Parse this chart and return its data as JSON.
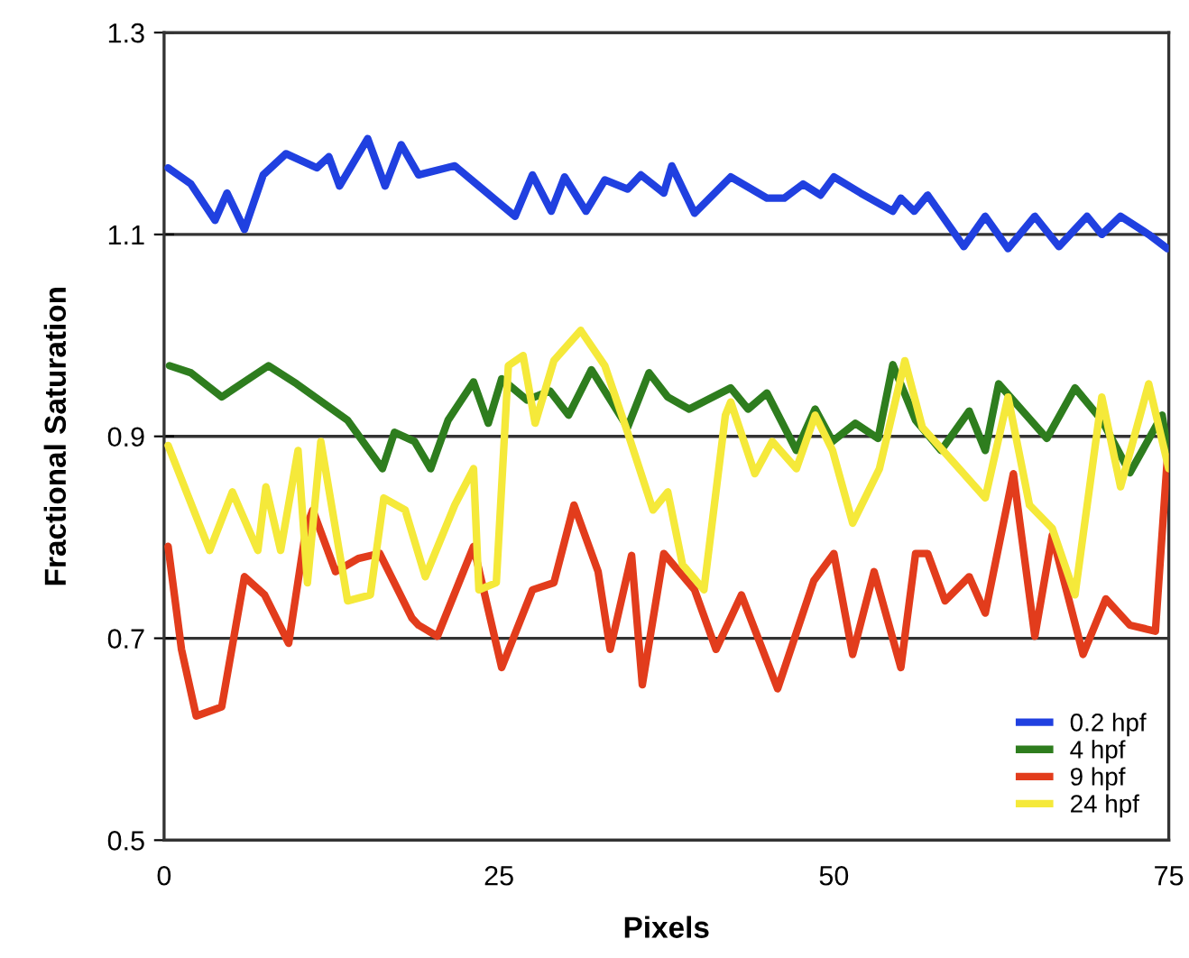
{
  "chart_data": {
    "type": "line",
    "xlabel": "Pixels",
    "ylabel": "Fractional Saturation",
    "xlim": [
      0,
      75
    ],
    "xticks": [
      0,
      25,
      50,
      75
    ],
    "ylim": [
      0.5,
      1.3
    ],
    "yticks": [
      0.5,
      0.7,
      0.9,
      1.1,
      1.3
    ],
    "grid": "y",
    "legend": "bottom right",
    "marker": "none",
    "line_style": "solid",
    "series": [
      {
        "name": "0.2 hpf",
        "color": "#2040e0",
        "x": [
          0.3,
          2,
          3.8,
          4.7,
          6,
          7.4,
          9.1,
          11.4,
          12.3,
          13.1,
          15.2,
          16.5,
          17.7,
          19,
          21.7,
          23.5,
          26.2,
          27.5,
          28.9,
          29.9,
          31.5,
          32.9,
          34.6,
          35.6,
          37.3,
          37.9,
          39.6,
          42.3,
          45,
          46.3,
          47.7,
          49,
          50,
          52,
          54.4,
          55,
          56,
          57,
          59.7,
          61.3,
          63,
          65,
          66.8,
          68.9,
          70,
          71.4,
          73.5,
          74.9
        ],
        "values": [
          1.166,
          1.15,
          1.114,
          1.141,
          1.105,
          1.159,
          1.18,
          1.166,
          1.177,
          1.148,
          1.195,
          1.148,
          1.189,
          1.159,
          1.168,
          1.148,
          1.118,
          1.159,
          1.123,
          1.157,
          1.123,
          1.154,
          1.145,
          1.159,
          1.141,
          1.168,
          1.121,
          1.157,
          1.136,
          1.136,
          1.15,
          1.139,
          1.157,
          1.141,
          1.123,
          1.136,
          1.123,
          1.139,
          1.088,
          1.118,
          1.086,
          1.118,
          1.088,
          1.118,
          1.1,
          1.118,
          1.1,
          1.086
        ]
      },
      {
        "name": "4 hpf",
        "color": "#2e7d1e",
        "x": [
          0.4,
          2,
          4.3,
          7.8,
          9.9,
          13.7,
          16.3,
          17.2,
          18.7,
          19.9,
          21.2,
          23.1,
          24.2,
          25.2,
          27.1,
          28.8,
          30.2,
          31.9,
          34.6,
          36.2,
          37.6,
          39.2,
          42.3,
          43.6,
          45,
          47.2,
          48.6,
          49.9,
          51.6,
          53.3,
          54.4,
          56.1,
          58,
          60.1,
          61.3,
          62.3,
          65.9,
          68,
          70,
          72.1,
          74.5,
          75
        ],
        "values": [
          0.97,
          0.963,
          0.939,
          0.97,
          0.952,
          0.916,
          0.868,
          0.904,
          0.895,
          0.868,
          0.916,
          0.954,
          0.913,
          0.957,
          0.936,
          0.945,
          0.921,
          0.966,
          0.909,
          0.963,
          0.939,
          0.927,
          0.948,
          0.927,
          0.943,
          0.886,
          0.927,
          0.895,
          0.913,
          0.898,
          0.971,
          0.916,
          0.886,
          0.925,
          0.886,
          0.952,
          0.898,
          0.948,
          0.916,
          0.864,
          0.921,
          0.88
        ]
      },
      {
        "name": "9 hpf",
        "color": "#e23c1c",
        "x": [
          0.3,
          1.3,
          2.4,
          4.3,
          6,
          7.5,
          9.3,
          10.6,
          11.1,
          12.8,
          14.5,
          16.1,
          18.5,
          19,
          20.4,
          23.1,
          25.2,
          27.5,
          29.1,
          30.6,
          32.4,
          33.3,
          34.9,
          35.7,
          37.3,
          39.6,
          41.2,
          43.1,
          45.8,
          48.5,
          50,
          51.4,
          53,
          55,
          56.1,
          57,
          58.3,
          60.1,
          61.3,
          63.4,
          65,
          66.3,
          68.6,
          70.3,
          72.1,
          74,
          74.9
        ],
        "values": [
          0.791,
          0.689,
          0.623,
          0.632,
          0.761,
          0.743,
          0.695,
          0.809,
          0.827,
          0.766,
          0.779,
          0.784,
          0.72,
          0.713,
          0.702,
          0.791,
          0.671,
          0.748,
          0.755,
          0.832,
          0.766,
          0.689,
          0.782,
          0.654,
          0.784,
          0.748,
          0.689,
          0.743,
          0.65,
          0.757,
          0.784,
          0.684,
          0.766,
          0.671,
          0.784,
          0.784,
          0.737,
          0.761,
          0.725,
          0.863,
          0.702,
          0.802,
          0.684,
          0.739,
          0.713,
          0.707,
          0.88
        ]
      },
      {
        "name": "24 hpf",
        "color": "#f5e93a",
        "x": [
          0.3,
          3.4,
          5.1,
          7,
          7.6,
          8.7,
          10,
          10.7,
          11.7,
          13.7,
          15.4,
          16.4,
          18,
          19.5,
          21.7,
          23.1,
          23.5,
          24.8,
          25.7,
          26.8,
          27.7,
          29.1,
          31.1,
          32.9,
          34.6,
          36.5,
          37.6,
          38.7,
          40.3,
          41.9,
          42.3,
          44.1,
          45.4,
          47.2,
          48.6,
          49.9,
          51.4,
          53.4,
          55.3,
          56.6,
          61.3,
          63,
          64.6,
          66.3,
          68,
          70,
          71.4,
          73.5,
          75
        ],
        "values": [
          0.891,
          0.787,
          0.845,
          0.787,
          0.85,
          0.787,
          0.886,
          0.755,
          0.895,
          0.737,
          0.743,
          0.839,
          0.827,
          0.761,
          0.832,
          0.868,
          0.748,
          0.755,
          0.97,
          0.98,
          0.913,
          0.975,
          1.005,
          0.97,
          0.904,
          0.827,
          0.845,
          0.773,
          0.748,
          0.921,
          0.934,
          0.863,
          0.895,
          0.868,
          0.921,
          0.886,
          0.814,
          0.868,
          0.975,
          0.909,
          0.839,
          0.939,
          0.832,
          0.809,
          0.743,
          0.939,
          0.85,
          0.952,
          0.868
        ]
      }
    ]
  }
}
